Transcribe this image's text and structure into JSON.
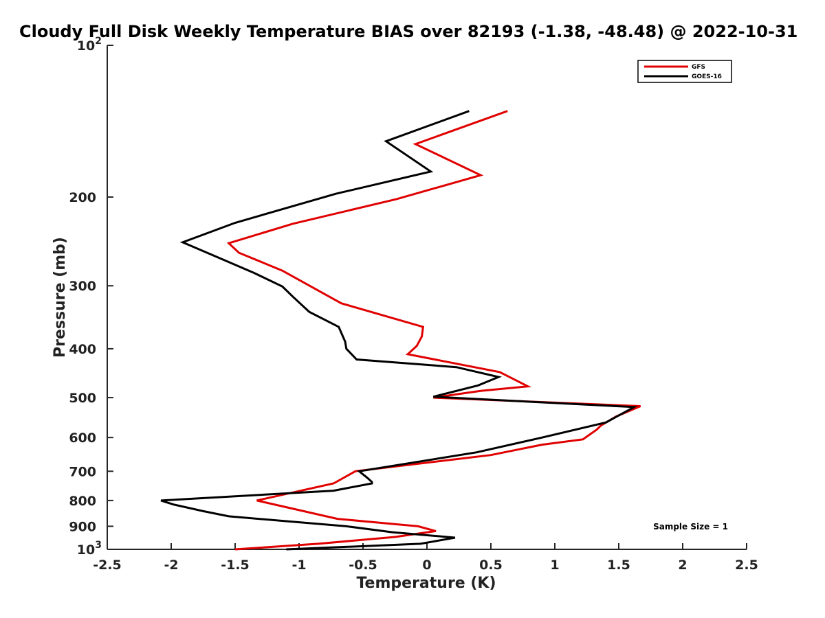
{
  "chart_data": {
    "type": "line",
    "title": "Cloudy Full Disk Weekly Temperature BIAS over 82193 (-1.38, -48.48) @ 2022-10-31",
    "xlabel": "Temperature (K)",
    "ylabel": "Pressure (mb)",
    "xlim": [
      -2.5,
      2.5
    ],
    "ylim": [
      100,
      1000
    ],
    "y_scale": "log",
    "y_reversed": true,
    "x_ticks": [
      "-2.5",
      "-2",
      "-1.5",
      "-1",
      "-0.5",
      "0",
      "0.5",
      "1",
      "1.5",
      "2",
      "2.5"
    ],
    "y_ticks": [
      {
        "value": 100,
        "label": "10",
        "sup": "2"
      },
      {
        "value": 200,
        "label": "200"
      },
      {
        "value": 300,
        "label": "300"
      },
      {
        "value": 400,
        "label": "400"
      },
      {
        "value": 500,
        "label": "500"
      },
      {
        "value": 600,
        "label": "600"
      },
      {
        "value": 700,
        "label": "700"
      },
      {
        "value": 800,
        "label": "800"
      },
      {
        "value": 900,
        "label": "900"
      },
      {
        "value": 1000,
        "label": "10",
        "sup": "3"
      }
    ],
    "legend_position": "top-right",
    "annotation": "Sample Size = 1",
    "series": [
      {
        "name": "GFS",
        "color": "#e00000",
        "points": [
          [
            0.63,
            135
          ],
          [
            -0.09,
            157
          ],
          [
            0.42,
            181
          ],
          [
            -0.24,
            202
          ],
          [
            -1.05,
            226
          ],
          [
            -1.55,
            247
          ],
          [
            -1.47,
            258
          ],
          [
            -1.13,
            280
          ],
          [
            -0.67,
            325
          ],
          [
            -0.03,
            362
          ],
          [
            -0.04,
            378
          ],
          [
            -0.08,
            395
          ],
          [
            -0.15,
            410
          ],
          [
            0.57,
            445
          ],
          [
            0.79,
            475
          ],
          [
            0.42,
            485
          ],
          [
            0.05,
            500
          ],
          [
            1.67,
            520
          ],
          [
            1.48,
            545
          ],
          [
            1.36,
            568
          ],
          [
            1.33,
            578
          ],
          [
            1.22,
            605
          ],
          [
            0.9,
            620
          ],
          [
            0.5,
            650
          ],
          [
            -0.56,
            700
          ],
          [
            -0.73,
            740
          ],
          [
            -1.33,
            800
          ],
          [
            -0.7,
            870
          ],
          [
            -0.07,
            900
          ],
          [
            0.07,
            920
          ],
          [
            -0.25,
            945
          ],
          [
            -0.85,
            975
          ],
          [
            -1.5,
            1000
          ]
        ]
      },
      {
        "name": "GOES-16",
        "color": "#000000",
        "points": [
          [
            0.33,
            135
          ],
          [
            -0.32,
            155
          ],
          [
            0.03,
            178
          ],
          [
            -0.71,
            197
          ],
          [
            -1.5,
            225
          ],
          [
            -1.91,
            246
          ],
          [
            -1.75,
            256
          ],
          [
            -1.35,
            283
          ],
          [
            -1.13,
            301
          ],
          [
            -1.05,
            315
          ],
          [
            -0.92,
            338
          ],
          [
            -0.69,
            362
          ],
          [
            -0.64,
            387
          ],
          [
            -0.63,
            400
          ],
          [
            -0.55,
            420
          ],
          [
            0.23,
            435
          ],
          [
            0.56,
            455
          ],
          [
            0.4,
            473
          ],
          [
            0.05,
            498
          ],
          [
            1.62,
            522
          ],
          [
            1.4,
            560
          ],
          [
            0.9,
            600
          ],
          [
            0.39,
            642
          ],
          [
            -0.53,
            700
          ],
          [
            -0.47,
            720
          ],
          [
            -0.43,
            735
          ],
          [
            -0.43,
            740
          ],
          [
            -0.73,
            765
          ],
          [
            -2.08,
            800
          ],
          [
            -1.98,
            815
          ],
          [
            -1.75,
            840
          ],
          [
            -1.55,
            860
          ],
          [
            -0.63,
            900
          ],
          [
            -0.27,
            925
          ],
          [
            0.22,
            948
          ],
          [
            -0.05,
            975
          ],
          [
            -1.1,
            1000
          ]
        ]
      }
    ]
  }
}
